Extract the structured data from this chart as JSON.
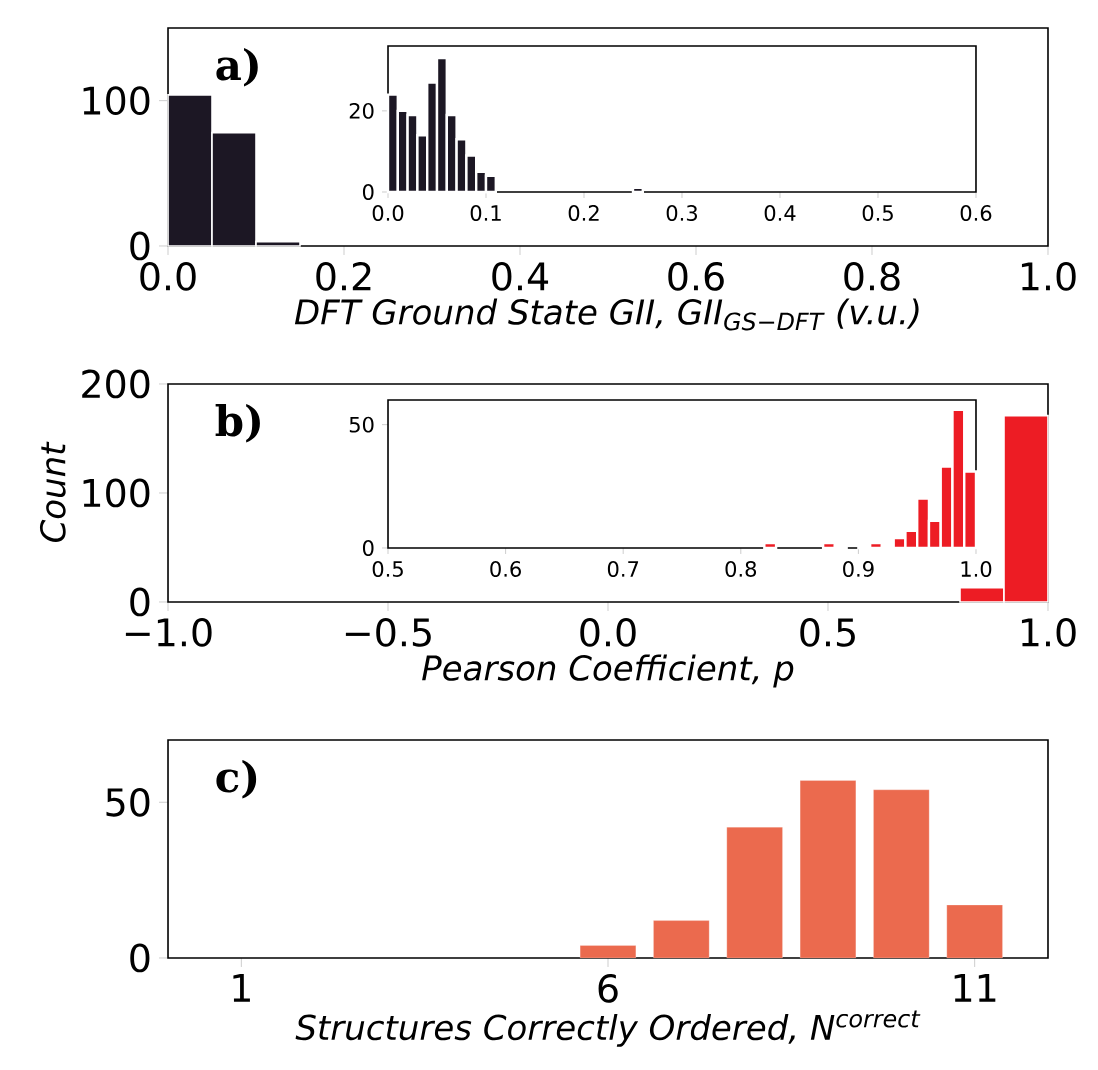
{
  "chart_data": [
    {
      "type": "histogram",
      "xlabel": "DFT Ground State GII, GII$_{GS−DFT}$ (v.u.)",
      "bins": [
        0,
        0.05,
        0.1,
        0.15
      ],
      "values": [
        104,
        78,
        3
      ],
      "color": "#1c1724",
      "xlim": [
        0,
        1
      ],
      "ylim": [
        0,
        150
      ],
      "xticks": [
        {
          "value": 0,
          "label": "0.0"
        },
        0.2,
        0.4,
        0.6,
        0.8,
        {
          "value": 1,
          "label": "1.0"
        }
      ],
      "yticks": [
        0,
        100
      ],
      "annotations": [
        "a)"
      ]
    },
    {
      "type": "histogram",
      "bins": [
        0,
        0.01,
        0.02,
        0.03,
        0.04,
        0.05,
        0.06,
        0.07,
        0.08,
        0.09,
        0.1,
        0.11,
        0.12,
        0.13,
        0.14,
        0.15,
        0.16,
        0.17,
        0.18,
        0.19,
        0.2,
        0.21,
        0.22,
        0.23,
        0.24,
        0.25,
        0.26
      ],
      "values": [
        24,
        20,
        19,
        14,
        27,
        33,
        19,
        13,
        9,
        5,
        4,
        0,
        0,
        0,
        0,
        0,
        0,
        0,
        0,
        0,
        0,
        0,
        0,
        0,
        0,
        1
      ],
      "color": "#1c1724",
      "xlim": [
        0,
        0.6
      ],
      "ylim": [
        0,
        36
      ],
      "xticks": [
        {
          "value": 0,
          "label": "0.0"
        },
        0.1,
        0.2,
        0.3,
        0.4,
        0.5,
        0.6
      ],
      "yticks": [
        0,
        20
      ]
    },
    {
      "type": "histogram",
      "xlabel": "Pearson Coefficient, p",
      "ylabel": "Count",
      "bins": [
        0.8,
        0.9,
        1.0
      ],
      "values": [
        13,
        171
      ],
      "color": "#ed1c24",
      "xlim": [
        -1,
        1
      ],
      "ylim": [
        0,
        200
      ],
      "xticks": [
        {
          "value": -1,
          "label": "−1.0"
        },
        {
          "value": -0.5,
          "label": "−0.5"
        },
        {
          "value": 0,
          "label": "0.0"
        },
        0.5,
        {
          "value": 1,
          "label": "1.0"
        }
      ],
      "yticks": [
        0,
        100,
        200
      ],
      "annotations": [
        "b)"
      ]
    },
    {
      "type": "histogram",
      "bins": [
        0.82,
        0.83,
        0.84,
        0.85,
        0.86,
        0.87,
        0.88,
        0.89,
        0.9,
        0.91,
        0.92,
        0.93,
        0.94,
        0.95,
        0.96,
        0.97,
        0.98,
        0.99,
        1.0
      ],
      "values": [
        2,
        0,
        0,
        0,
        0,
        2,
        1,
        0,
        1,
        2,
        1,
        4,
        7,
        20,
        11,
        33,
        56,
        31
      ],
      "color": "#ed1c24",
      "xlim": [
        0.5,
        1.0
      ],
      "ylim": [
        0,
        60
      ],
      "xticks": [
        0.5,
        0.6,
        0.7,
        0.8,
        0.9,
        {
          "value": 1,
          "label": "1.0"
        }
      ],
      "yticks": [
        0,
        50
      ]
    },
    {
      "type": "bar",
      "xlabel": "Structures Correctly Ordered, N$^{correct}$",
      "x": [
        6,
        7,
        8,
        9,
        10,
        11
      ],
      "values": [
        4,
        12,
        42,
        57,
        54,
        17
      ],
      "color": "#eb6a4e",
      "xlim": [
        0,
        12
      ],
      "ylim": [
        0,
        70
      ],
      "xticks": [
        1,
        6,
        11
      ],
      "yticks": [
        0,
        50
      ],
      "annotations": [
        "c)"
      ]
    }
  ]
}
